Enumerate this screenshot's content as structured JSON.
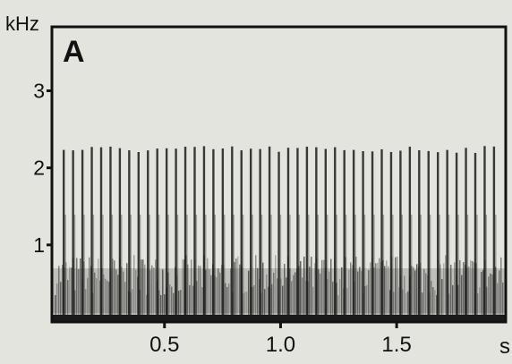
{
  "chart_data": {
    "type": "spectrogram",
    "panel_label": "A",
    "x_label": "s",
    "y_label": "kHz",
    "xlim": [
      0.015,
      1.97
    ],
    "ylim": [
      0,
      3.83
    ],
    "xticks": [
      0.5,
      {
        "value": 1,
        "label": "1.0"
      },
      1.5
    ],
    "yticks": [
      1,
      2,
      3
    ],
    "color": "#1a1a1a"
  }
}
